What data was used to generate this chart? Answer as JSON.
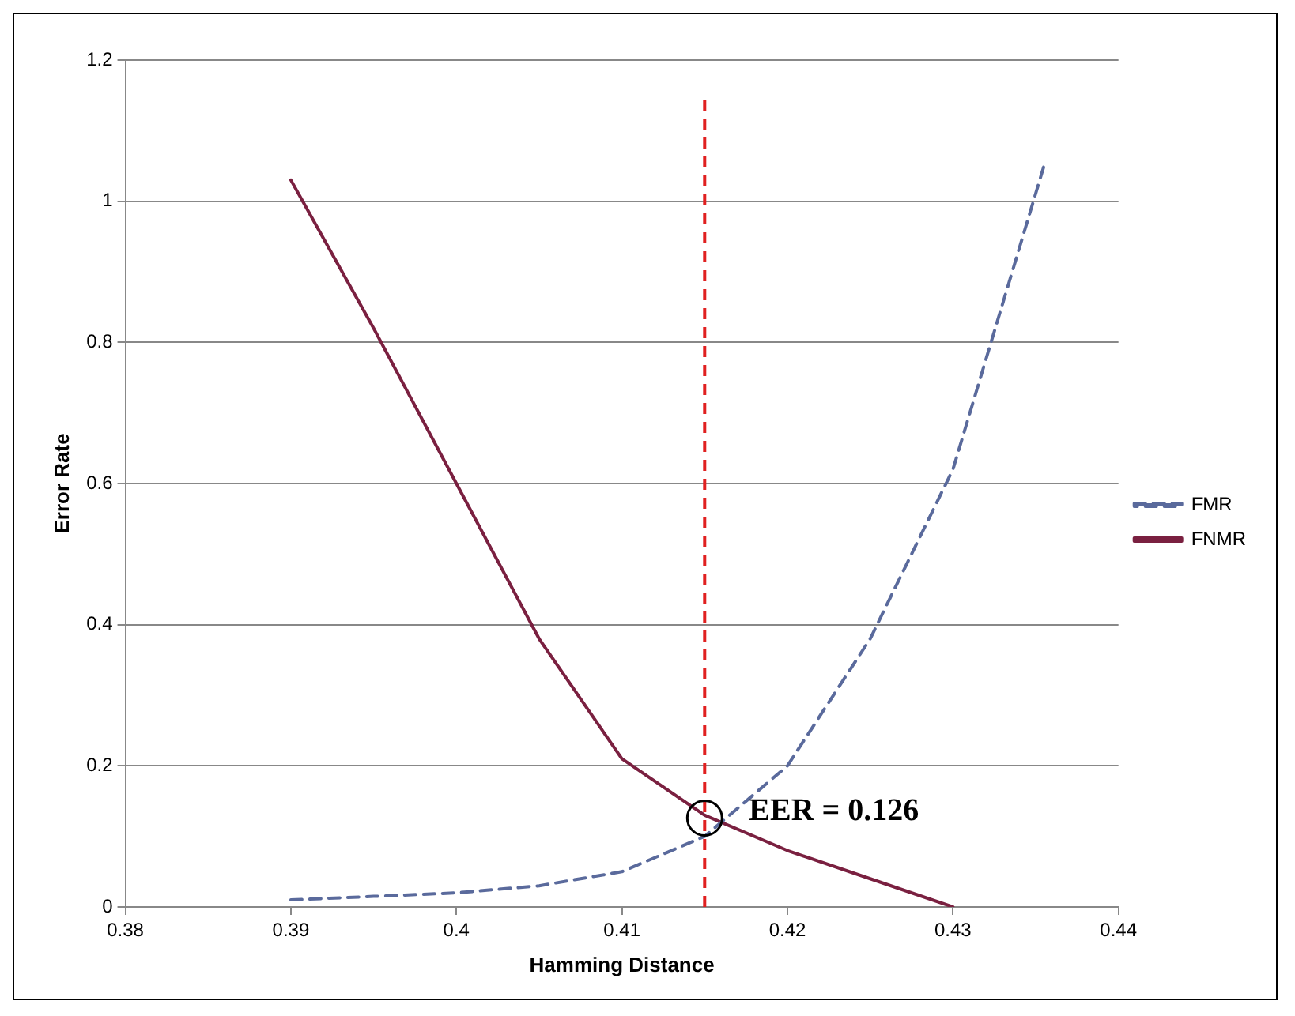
{
  "chart_data": {
    "type": "line",
    "xlabel": "Hamming Distance",
    "ylabel": "Error Rate",
    "xlim": [
      0.38,
      0.44
    ],
    "xticks": [
      0.38,
      0.39,
      0.4,
      0.41,
      0.42,
      0.43,
      0.44
    ],
    "ylim": [
      0,
      1.2
    ],
    "yticks": [
      0,
      0.2,
      0.4,
      0.6,
      0.8,
      1,
      1.2
    ],
    "grid": "y",
    "legend": "right",
    "marker": "none",
    "series": [
      {
        "name": "FMR",
        "color": "#5a6a9c",
        "line_style": "dashed",
        "x": [
          0.39,
          0.395,
          0.4,
          0.405,
          0.41,
          0.415,
          0.42,
          0.425,
          0.43,
          0.4355
        ],
        "values": [
          0.01,
          0.015,
          0.02,
          0.03,
          0.05,
          0.1,
          0.2,
          0.38,
          0.62,
          1.05
        ]
      },
      {
        "name": "FNMR",
        "color": "#7a2040",
        "line_style": "solid",
        "x": [
          0.39,
          0.395,
          0.4,
          0.405,
          0.41,
          0.415,
          0.42,
          0.425,
          0.43
        ],
        "values": [
          1.03,
          0.82,
          0.6,
          0.38,
          0.21,
          0.13,
          0.08,
          0.04,
          0
        ]
      }
    ],
    "ref_lines": [
      {
        "axis": "x",
        "value": 0.415,
        "color": "#e02020",
        "line_style": "dashed"
      }
    ],
    "annotations": [
      {
        "text": "EER = 0.126",
        "x": 0.415,
        "y": 0.126
      }
    ]
  }
}
